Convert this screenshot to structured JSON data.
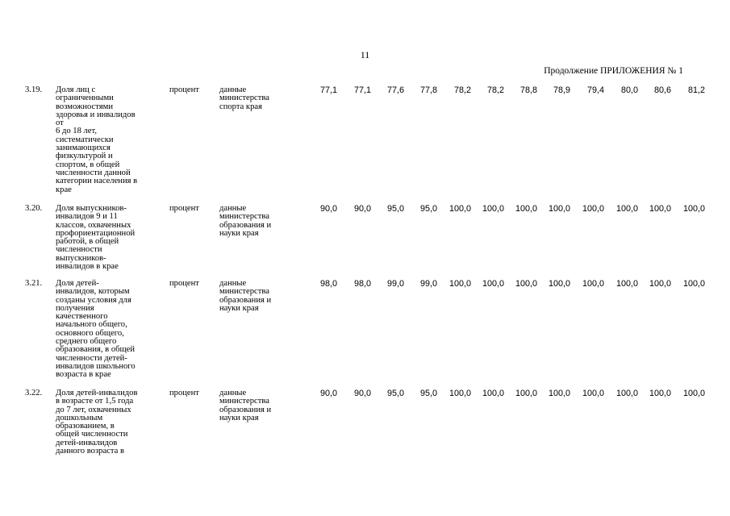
{
  "header": {
    "page_number": "11",
    "continuation": "Продолжение ПРИЛОЖЕНИЯ № 1"
  },
  "rows": [
    {
      "number": "3.19.",
      "name": "Доля лиц с\nограниченными\nвозможностями\nздоровья и инвалидов\nот\n6 до 18 лет,\nсистематически\nзанимающихся\nфизкультурой и\nспортом, в общей\nчисленности данной\nкатегории населения в\nкрае",
      "unit": "процент",
      "source": "данные\nминистерства\nспорта края",
      "values": [
        "77,1",
        "77,1",
        "77,6",
        "77,8",
        "78,2",
        "78,2",
        "78,8",
        "78,9",
        "79,4",
        "80,0",
        "80,6",
        "81,2"
      ]
    },
    {
      "number": "3.20.",
      "name": "Доля выпускников-\nинвалидов 9 и 11\nклассов, охваченных\nпрофориентационной\nработой, в общей\nчисленности\nвыпускников-\nинвалидов в крае",
      "unit": "процент",
      "source": "данные\nминистерства\nобразования и\nнауки края",
      "values": [
        "90,0",
        "90,0",
        "95,0",
        "95,0",
        "100,0",
        "100,0",
        "100,0",
        "100,0",
        "100,0",
        "100,0",
        "100,0",
        "100,0"
      ]
    },
    {
      "number": "3.21.",
      "name": "Доля детей-\nинвалидов, которым\nсозданы условия для\nполучения\nкачественного\nначального общего,\nосновного общего,\nсреднего общего\nобразования, в общей\nчисленности детей-\nинвалидов школьного\nвозраста в крае",
      "unit": "процент",
      "source": "данные\nминистерства\nобразования и\nнауки края",
      "values": [
        "98,0",
        "98,0",
        "99,0",
        "99,0",
        "100,0",
        "100,0",
        "100,0",
        "100,0",
        "100,0",
        "100,0",
        "100,0",
        "100,0"
      ]
    },
    {
      "number": "3.22.",
      "name": "Доля детей-инвалидов\nв возрасте от 1,5 года\nдо 7 лет, охваченных\nдошкольным\nобразованием, в\nобщей численности\nдетей-инвалидов\nданного возраста в",
      "unit": "процент",
      "source": "данные\nминистерства\nобразования и\nнауки края",
      "values": [
        "90,0",
        "90,0",
        "95,0",
        "95,0",
        "100,0",
        "100,0",
        "100,0",
        "100,0",
        "100,0",
        "100,0",
        "100,0",
        "100,0"
      ]
    }
  ]
}
